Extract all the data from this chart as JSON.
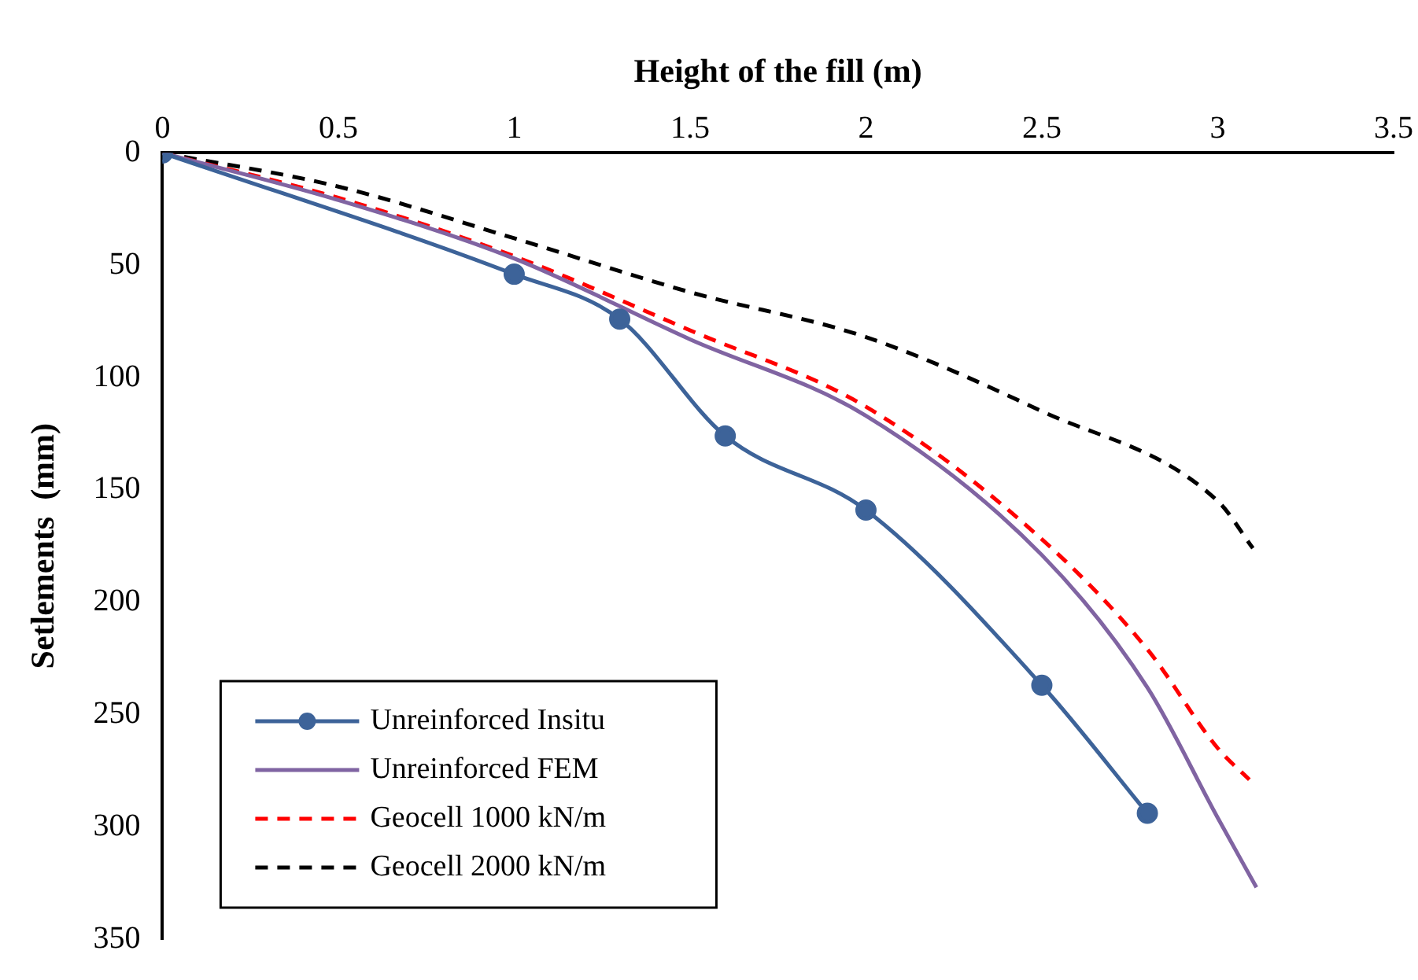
{
  "chart_data": {
    "type": "line",
    "xlabel": "Height of the fill (m)",
    "ylabel": "Setlements  (mm)",
    "xlim": [
      0,
      3.5
    ],
    "xticks": [
      0,
      0.5,
      1,
      1.5,
      2,
      2.5,
      3,
      3.5
    ],
    "ylim": [
      350,
      0
    ],
    "yticks": [
      0,
      50,
      100,
      150,
      200,
      250,
      300,
      350
    ],
    "grid": false,
    "legend": "bottom left",
    "series": [
      {
        "name": "Unreinforced Insitu",
        "color": "#3d6399",
        "marker": "circle",
        "line_style": "solid",
        "x": [
          0,
          1,
          1.3,
          1.6,
          2,
          2.5,
          2.8
        ],
        "values": [
          0,
          54,
          74,
          126,
          159,
          237,
          294
        ]
      },
      {
        "name": "Unreinforced FEM",
        "color": "#8064a2",
        "marker": "none",
        "line_style": "solid",
        "x": [
          0,
          0.5,
          1,
          1.5,
          2,
          2.5,
          2.8,
          3,
          3.11
        ],
        "values": [
          0,
          21,
          47,
          83,
          117,
          179,
          238,
          296,
          327
        ]
      },
      {
        "name": "Geocell 1000 kN/m",
        "color": "#ff0000",
        "marker": "none",
        "line_style": "dashed",
        "x": [
          0,
          0.5,
          1,
          1.5,
          2,
          2.5,
          2.8,
          3,
          3.09
        ],
        "values": [
          0,
          20,
          46,
          79,
          113,
          172,
          221,
          265,
          279
        ]
      },
      {
        "name": "Geocell 2000 kN/m",
        "color": "#000000",
        "marker": "none",
        "line_style": "dashed",
        "x": [
          0,
          0.5,
          1,
          1.5,
          2,
          2.5,
          3,
          3.1
        ],
        "values": [
          0,
          15,
          38,
          62,
          82,
          115,
          155,
          176
        ]
      }
    ]
  }
}
